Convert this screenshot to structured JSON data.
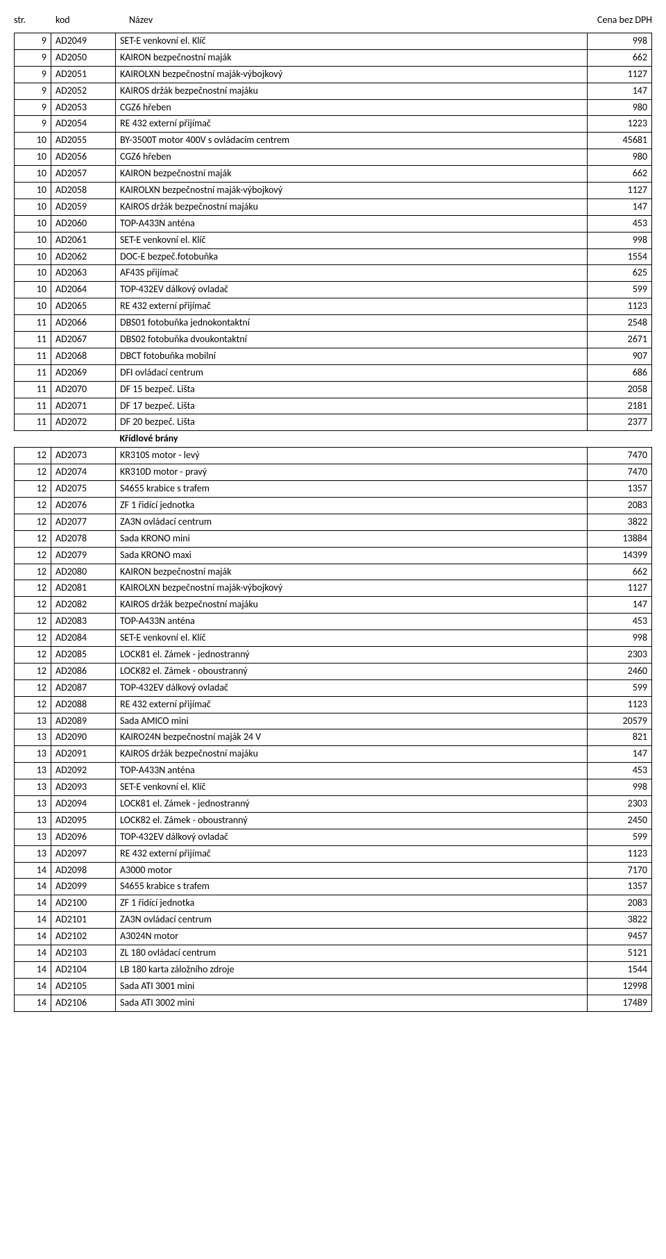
{
  "header": {
    "str": "str.",
    "kod": "kod",
    "nazev": "Název",
    "cena": "Cena bez  DPH"
  },
  "sections": [
    {
      "title": null,
      "rows": [
        {
          "str": "9",
          "kod": "AD2049",
          "nazev": "SET-E venkovní el. Klíč",
          "cena": "998"
        },
        {
          "str": "9",
          "kod": "AD2050",
          "nazev": "KAIRON bezpečnostní maják",
          "cena": "662"
        },
        {
          "str": "9",
          "kod": "AD2051",
          "nazev": "KAIROLXN bezpečnostní maják-výbojkový",
          "cena": "1127"
        },
        {
          "str": "9",
          "kod": "AD2052",
          "nazev": "KAIROS držák bezpečnostní majáku",
          "cena": "147"
        },
        {
          "str": "9",
          "kod": "AD2053",
          "nazev": "CGZ6 hřeben",
          "cena": "980"
        },
        {
          "str": "9",
          "kod": "AD2054",
          "nazev": "RE 432 externí přijímač",
          "cena": "1223"
        },
        {
          "str": "10",
          "kod": "AD2055",
          "nazev": "BY-3500T motor 400V s ovládacím centrem",
          "cena": "45681"
        },
        {
          "str": "10",
          "kod": "AD2056",
          "nazev": "CGZ6 hřeben",
          "cena": "980"
        },
        {
          "str": "10",
          "kod": "AD2057",
          "nazev": "KAIRON bezpečnostní maják",
          "cena": "662"
        },
        {
          "str": "10",
          "kod": "AD2058",
          "nazev": "KAIROLXN bezpečnostní maják-výbojkový",
          "cena": "1127"
        },
        {
          "str": "10",
          "kod": "AD2059",
          "nazev": "KAIROS držák bezpečnostní majáku",
          "cena": "147"
        },
        {
          "str": "10",
          "kod": "AD2060",
          "nazev": "TOP-A433N anténa",
          "cena": "453"
        },
        {
          "str": "10",
          "kod": "AD2061",
          "nazev": "SET-E venkovní el. Klíč",
          "cena": "998"
        },
        {
          "str": "10",
          "kod": "AD2062",
          "nazev": "DOC-E bezpeč.fotobuňka",
          "cena": "1554"
        },
        {
          "str": "10",
          "kod": "AD2063",
          "nazev": "AF43S přijímač",
          "cena": "625"
        },
        {
          "str": "10",
          "kod": "AD2064",
          "nazev": "TOP-432EV dálkový ovladač",
          "cena": "599"
        },
        {
          "str": "10",
          "kod": "AD2065",
          "nazev": "RE 432 externí přijímač",
          "cena": "1123"
        },
        {
          "str": "11",
          "kod": "AD2066",
          "nazev": "DBS01 fotobuňka jednokontaktní",
          "cena": "2548"
        },
        {
          "str": "11",
          "kod": "AD2067",
          "nazev": "DBS02 fotobuňka dvoukontaktní",
          "cena": "2671"
        },
        {
          "str": "11",
          "kod": "AD2068",
          "nazev": "DBCT fotobuňka mobilní",
          "cena": "907"
        },
        {
          "str": "11",
          "kod": "AD2069",
          "nazev": "DFI ovládací centrum",
          "cena": "686"
        },
        {
          "str": "11",
          "kod": "AD2070",
          "nazev": "DF 15 bezpeč. Lišta",
          "cena": "2058"
        },
        {
          "str": "11",
          "kod": "AD2071",
          "nazev": "DF 17 bezpeč. Lišta",
          "cena": "2181"
        },
        {
          "str": "11",
          "kod": "AD2072",
          "nazev": "DF 20 bezpeč. Lišta",
          "cena": "2377"
        }
      ]
    },
    {
      "title": "Křídlové brány",
      "rows": [
        {
          "str": "12",
          "kod": "AD2073",
          "nazev": "KR310S motor - levý",
          "cena": "7470"
        },
        {
          "str": "12",
          "kod": "AD2074",
          "nazev": "KR310D motor - pravý",
          "cena": "7470"
        },
        {
          "str": "12",
          "kod": "AD2075",
          "nazev": "S4655 krabice s trafem",
          "cena": "1357"
        },
        {
          "str": "12",
          "kod": "AD2076",
          "nazev": "ZF 1 řidící jednotka",
          "cena": "2083"
        },
        {
          "str": "12",
          "kod": "AD2077",
          "nazev": "ZA3N ovládací centrum",
          "cena": "3822"
        },
        {
          "str": "12",
          "kod": "AD2078",
          "nazev": "Sada KRONO mini",
          "cena": "13884"
        },
        {
          "str": "12",
          "kod": "AD2079",
          "nazev": "Sada KRONO maxi",
          "cena": "14399"
        },
        {
          "str": "12",
          "kod": "AD2080",
          "nazev": "KAIRON bezpečnostní maják",
          "cena": "662"
        },
        {
          "str": "12",
          "kod": "AD2081",
          "nazev": "KAIROLXN bezpečnostní maják-výbojkový",
          "cena": "1127"
        },
        {
          "str": "12",
          "kod": "AD2082",
          "nazev": "KAIROS držák bezpečnostní majáku",
          "cena": "147"
        },
        {
          "str": "12",
          "kod": "AD2083",
          "nazev": "TOP-A433N anténa",
          "cena": "453"
        },
        {
          "str": "12",
          "kod": "AD2084",
          "nazev": "SET-E venkovní el. Klíč",
          "cena": "998"
        },
        {
          "str": "12",
          "kod": "AD2085",
          "nazev": "LOCK81 el. Zámek - jednostranný",
          "cena": "2303"
        },
        {
          "str": "12",
          "kod": "AD2086",
          "nazev": "LOCK82 el. Zámek - oboustranný",
          "cena": "2460"
        },
        {
          "str": "12",
          "kod": "AD2087",
          "nazev": "TOP-432EV dálkový ovladač",
          "cena": "599"
        },
        {
          "str": "12",
          "kod": "AD2088",
          "nazev": "RE 432 externí přijímač",
          "cena": "1123"
        },
        {
          "str": "13",
          "kod": "AD2089",
          "nazev": "Sada AMICO mini",
          "cena": "20579"
        },
        {
          "str": "13",
          "kod": "AD2090",
          "nazev": "KAIRO24N bezpečnostní maják 24 V",
          "cena": "821"
        },
        {
          "str": "13",
          "kod": "AD2091",
          "nazev": "KAIROS držák bezpečnostní majáku",
          "cena": "147"
        },
        {
          "str": "13",
          "kod": "AD2092",
          "nazev": "TOP-A433N anténa",
          "cena": "453"
        },
        {
          "str": "13",
          "kod": "AD2093",
          "nazev": "SET-E venkovní el. Klíč",
          "cena": "998"
        },
        {
          "str": "13",
          "kod": "AD2094",
          "nazev": "LOCK81 el. Zámek - jednostranný",
          "cena": "2303"
        },
        {
          "str": "13",
          "kod": "AD2095",
          "nazev": "LOCK82 el. Zámek - oboustranný",
          "cena": "2450"
        },
        {
          "str": "13",
          "kod": "AD2096",
          "nazev": "TOP-432EV dálkový ovladač",
          "cena": "599"
        },
        {
          "str": "13",
          "kod": "AD2097",
          "nazev": "RE 432 externí přijímač",
          "cena": "1123"
        },
        {
          "str": "14",
          "kod": "AD2098",
          "nazev": "A3000 motor",
          "cena": "7170"
        },
        {
          "str": "14",
          "kod": "AD2099",
          "nazev": "S4655 krabice s trafem",
          "cena": "1357"
        },
        {
          "str": "14",
          "kod": "AD2100",
          "nazev": "ZF 1 řidící jednotka",
          "cena": "2083"
        },
        {
          "str": "14",
          "kod": "AD2101",
          "nazev": "ZA3N ovládací centrum",
          "cena": "3822"
        },
        {
          "str": "14",
          "kod": "AD2102",
          "nazev": "A3024N motor",
          "cena": "9457"
        },
        {
          "str": "14",
          "kod": "AD2103",
          "nazev": "ZL 180 ovládací centrum",
          "cena": "5121"
        },
        {
          "str": "14",
          "kod": "AD2104",
          "nazev": "LB 180 karta záložního zdroje",
          "cena": "1544"
        },
        {
          "str": "14",
          "kod": "AD2105",
          "nazev": "Sada ATI 3001 mini",
          "cena": "12998"
        },
        {
          "str": "14",
          "kod": "AD2106",
          "nazev": "Sada ATI 3002 mini",
          "cena": "17489"
        }
      ]
    }
  ]
}
